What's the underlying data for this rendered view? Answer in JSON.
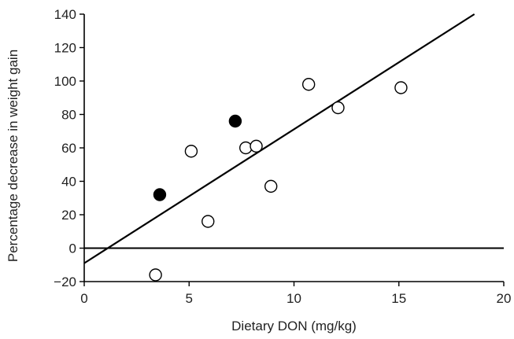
{
  "chart_data": {
    "type": "scatter",
    "title": "",
    "xlabel": "Dietary DON (mg/kg)",
    "ylabel": "Percentage decrease in weight gain",
    "xlim": [
      0,
      20
    ],
    "ylim": [
      -20,
      140
    ],
    "x_ticks": [
      0,
      5,
      10,
      15,
      20
    ],
    "y_ticks": [
      -20,
      0,
      20,
      40,
      60,
      80,
      100,
      120,
      140
    ],
    "grid": false,
    "series": [
      {
        "marker": "open-circle",
        "points": [
          {
            "x": 3.4,
            "y": -16
          },
          {
            "x": 5.1,
            "y": 58
          },
          {
            "x": 5.9,
            "y": 16
          },
          {
            "x": 7.7,
            "y": 60
          },
          {
            "x": 8.2,
            "y": 61
          },
          {
            "x": 8.9,
            "y": 37
          },
          {
            "x": 10.7,
            "y": 98
          },
          {
            "x": 12.1,
            "y": 84
          },
          {
            "x": 15.1,
            "y": 96
          }
        ]
      },
      {
        "marker": "filled-circle",
        "points": [
          {
            "x": 3.6,
            "y": 32
          },
          {
            "x": 7.2,
            "y": 76
          }
        ]
      }
    ],
    "regression_line": {
      "x": [
        0,
        18.6
      ],
      "y": [
        -9,
        140
      ]
    },
    "reference_line_y": 0,
    "colors": {
      "axis": "#000000",
      "marker": "#000000",
      "marker_open_fill": "#ffffff"
    }
  }
}
